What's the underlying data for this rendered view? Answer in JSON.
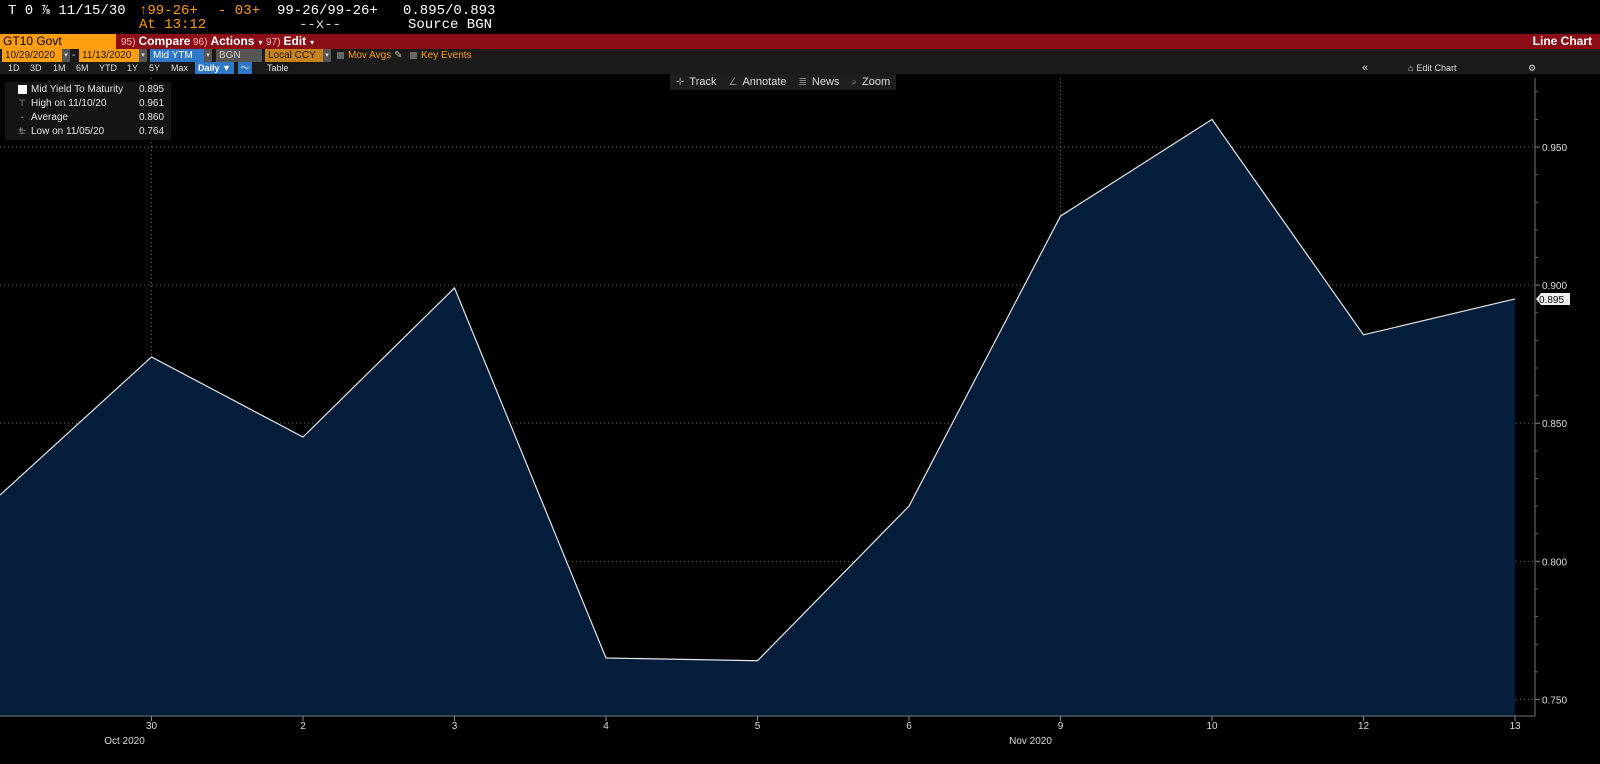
{
  "quote": {
    "ticker": "T 0 ⅞ 11/15/30",
    "last_price": "↑99-26+",
    "change": "- 03+",
    "bid_ask": "99-26/99-26+",
    "yield_bid_ask": "0.895/0.893",
    "time": "At 13:12",
    "size": "--x--",
    "source": "Source BGN"
  },
  "titlebar": {
    "security": "GT10 Govt",
    "menus": [
      {
        "num": "95)",
        "label": "Compare"
      },
      {
        "num": "96)",
        "label": "Actions"
      },
      {
        "num": "97)",
        "label": "Edit"
      }
    ],
    "right_label": "Line Chart"
  },
  "settings": {
    "start_date": "10/29/2020",
    "end_date": "11/13/2020",
    "field": "Mid YTM",
    "source": "BGN",
    "currency": "Local CCY",
    "mov_avgs": "Mov Avgs",
    "key_events": "Key Events"
  },
  "ranges": {
    "items": [
      "1D",
      "3D",
      "1M",
      "6M",
      "YTD",
      "1Y",
      "5Y",
      "Max"
    ],
    "frequency": "Daily",
    "table": "Table",
    "collapse": "«",
    "edit_chart": "Edit Chart",
    "gear": "⚙"
  },
  "toolbar": {
    "items": [
      {
        "icon": "✛",
        "label": "Track"
      },
      {
        "icon": "∠",
        "label": "Annotate"
      },
      {
        "icon": "≣",
        "label": "News"
      },
      {
        "icon": "⌕",
        "label": "Zoom"
      }
    ]
  },
  "legend": {
    "rows": [
      {
        "label": "Mid Yield To Maturity",
        "value": "0.895"
      },
      {
        "label": "High on 11/10/20",
        "value": "0.961"
      },
      {
        "label": "Average",
        "value": "0.860"
      },
      {
        "label": "Low on 11/05/20",
        "value": "0.764"
      }
    ]
  },
  "colors": {
    "line": "#e6e6e6",
    "area": "#041d3a",
    "grid": "#6a6a6a",
    "accent_orange": "#ff9d10",
    "title_red": "#8b0d16"
  },
  "chart_data": {
    "type": "area",
    "x": [
      "10/29",
      "10/30",
      "11/02",
      "11/03",
      "11/04",
      "11/05",
      "11/06",
      "11/09",
      "11/10",
      "11/12",
      "11/13"
    ],
    "x_tick_labels": [
      "30",
      "2",
      "3",
      "4",
      "5",
      "6",
      "9",
      "10",
      "12",
      "13"
    ],
    "x_group_labels": [
      "Oct 2020",
      "Nov 2020"
    ],
    "series": [
      {
        "name": "Mid Yield To Maturity",
        "values": [
          0.824,
          0.874,
          0.845,
          0.899,
          0.765,
          0.764,
          0.82,
          0.925,
          0.96,
          0.882,
          0.895
        ]
      }
    ],
    "last_value_label": "0.895",
    "y_ticks": [
      "0.750",
      "0.800",
      "0.850",
      "0.900",
      "0.950"
    ],
    "ylim": [
      0.744,
      0.975
    ],
    "grid": true
  }
}
